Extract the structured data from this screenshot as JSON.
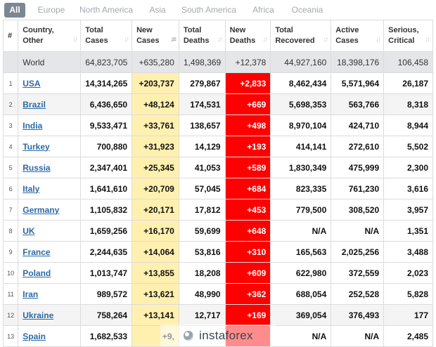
{
  "tabs": [
    "All",
    "Europe",
    "North America",
    "Asia",
    "South America",
    "Africa",
    "Oceania"
  ],
  "headers": {
    "num": "#",
    "country": [
      "Country,",
      "Other"
    ],
    "total_cases": [
      "Total",
      "Cases"
    ],
    "new_cases": [
      "New",
      "Cases"
    ],
    "total_deaths": [
      "Total",
      "Deaths"
    ],
    "new_deaths": [
      "New",
      "Deaths"
    ],
    "total_recovered": [
      "Total",
      "Recovered"
    ],
    "active_cases": [
      "Active",
      "Cases"
    ],
    "serious": [
      "Serious,",
      "Critical"
    ]
  },
  "world": {
    "country": "World",
    "total_cases": "64,823,705",
    "new_cases": "+635,280",
    "total_deaths": "1,498,369",
    "new_deaths": "+12,378",
    "total_recovered": "44,927,160",
    "active_cases": "18,398,176",
    "serious": "106,458"
  },
  "rows": [
    {
      "num": "1",
      "country": "USA",
      "total_cases": "14,314,265",
      "new_cases": "+203,737",
      "total_deaths": "279,867",
      "new_deaths": "+2,833",
      "total_recovered": "8,462,434",
      "active_cases": "5,571,964",
      "serious": "26,187"
    },
    {
      "num": "2",
      "country": "Brazil",
      "total_cases": "6,436,650",
      "new_cases": "+48,124",
      "total_deaths": "174,531",
      "new_deaths": "+669",
      "total_recovered": "5,698,353",
      "active_cases": "563,766",
      "serious": "8,318"
    },
    {
      "num": "3",
      "country": "India",
      "total_cases": "9,533,471",
      "new_cases": "+33,761",
      "total_deaths": "138,657",
      "new_deaths": "+498",
      "total_recovered": "8,970,104",
      "active_cases": "424,710",
      "serious": "8,944"
    },
    {
      "num": "4",
      "country": "Turkey",
      "total_cases": "700,880",
      "new_cases": "+31,923",
      "total_deaths": "14,129",
      "new_deaths": "+193",
      "total_recovered": "414,141",
      "active_cases": "272,610",
      "serious": "5,502"
    },
    {
      "num": "5",
      "country": "Russia",
      "total_cases": "2,347,401",
      "new_cases": "+25,345",
      "total_deaths": "41,053",
      "new_deaths": "+589",
      "total_recovered": "1,830,349",
      "active_cases": "475,999",
      "serious": "2,300"
    },
    {
      "num": "6",
      "country": "Italy",
      "total_cases": "1,641,610",
      "new_cases": "+20,709",
      "total_deaths": "57,045",
      "new_deaths": "+684",
      "total_recovered": "823,335",
      "active_cases": "761,230",
      "serious": "3,616"
    },
    {
      "num": "7",
      "country": "Germany",
      "total_cases": "1,105,832",
      "new_cases": "+20,171",
      "total_deaths": "17,812",
      "new_deaths": "+453",
      "total_recovered": "779,500",
      "active_cases": "308,520",
      "serious": "3,957"
    },
    {
      "num": "8",
      "country": "UK",
      "total_cases": "1,659,256",
      "new_cases": "+16,170",
      "total_deaths": "59,699",
      "new_deaths": "+648",
      "total_recovered": "N/A",
      "active_cases": "N/A",
      "serious": "1,351"
    },
    {
      "num": "9",
      "country": "France",
      "total_cases": "2,244,635",
      "new_cases": "+14,064",
      "total_deaths": "53,816",
      "new_deaths": "+310",
      "total_recovered": "165,563",
      "active_cases": "2,025,256",
      "serious": "3,488"
    },
    {
      "num": "10",
      "country": "Poland",
      "total_cases": "1,013,747",
      "new_cases": "+13,855",
      "total_deaths": "18,208",
      "new_deaths": "+609",
      "total_recovered": "622,980",
      "active_cases": "372,559",
      "serious": "2,023"
    },
    {
      "num": "11",
      "country": "Iran",
      "total_cases": "989,572",
      "new_cases": "+13,621",
      "total_deaths": "48,990",
      "new_deaths": "+362",
      "total_recovered": "688,054",
      "active_cases": "252,528",
      "serious": "5,828"
    },
    {
      "num": "12",
      "country": "Ukraine",
      "total_cases": "758,264",
      "new_cases": "+13,141",
      "total_deaths": "12,717",
      "new_deaths": "+169",
      "total_recovered": "369,054",
      "active_cases": "376,493",
      "serious": "177"
    },
    {
      "num": "13",
      "country": "Spain",
      "total_cases": "1,682,533",
      "new_cases": "+9,",
      "total_deaths": "",
      "new_deaths": "",
      "total_recovered": "N/A",
      "active_cases": "N/A",
      "serious": "2,485"
    }
  ],
  "watermark": {
    "text": "instaforex"
  },
  "colors": {
    "new_cases_bg": "#fff0b0",
    "new_deaths_bg": "#ff0000",
    "link": "#2b6aa6",
    "active_tab": "#7c8794",
    "world_row_bg": "#e5e6e8"
  }
}
